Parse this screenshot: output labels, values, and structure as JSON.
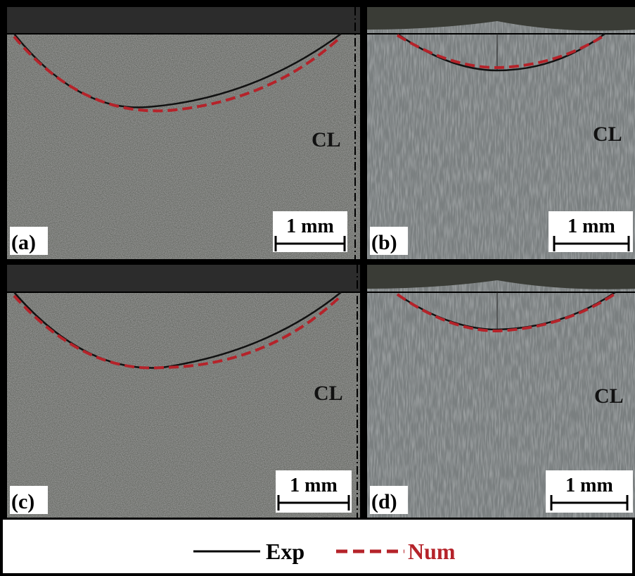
{
  "panels": [
    {
      "label": "(a)",
      "centerline": "CL",
      "scale_bar": "1 mm"
    },
    {
      "label": "(b)",
      "centerline": "CL",
      "scale_bar": "1 mm"
    },
    {
      "label": "(c)",
      "centerline": "CL",
      "scale_bar": "1 mm"
    },
    {
      "label": "(d)",
      "centerline": "CL",
      "scale_bar": "1 mm"
    }
  ],
  "legend": [
    {
      "name": "Exp"
    },
    {
      "name": "Num"
    }
  ]
}
